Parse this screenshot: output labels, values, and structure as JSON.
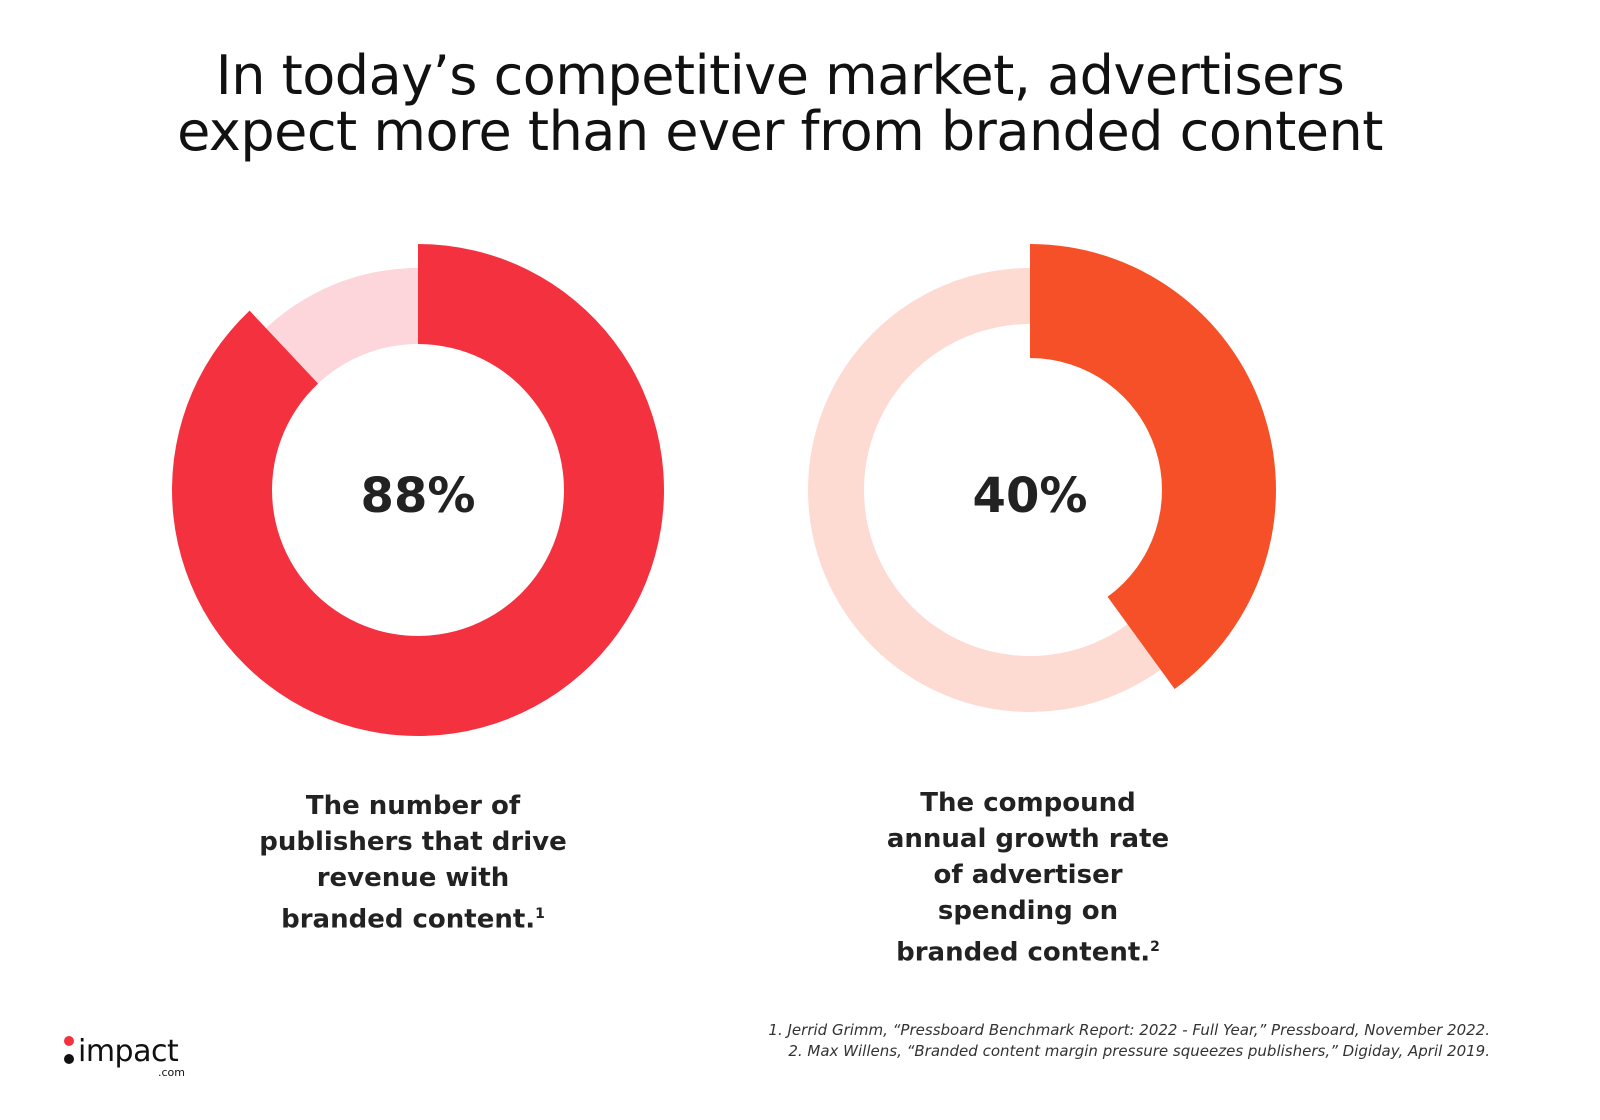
{
  "chart_data": [
    {
      "type": "pie",
      "variant": "donut",
      "value": 88,
      "label": "88%",
      "caption": "The number of publishers that drive revenue with branded content.",
      "footnote_ref": "1",
      "color": "#f4313f",
      "track_color": "#fcd6da"
    },
    {
      "type": "pie",
      "variant": "donut",
      "value": 40,
      "label": "40%",
      "caption": "The compound annual growth rate of advertiser spending on branded content.",
      "footnote_ref": "2",
      "color": "#f55027",
      "track_color": "#fddbd3"
    }
  ],
  "title": {
    "line1": "In today’s competitive market, advertisers",
    "line2": "expect more than ever from branded content"
  },
  "captions": {
    "left": [
      "The number of",
      "publishers that drive",
      "revenue with",
      "branded content."
    ],
    "right": [
      "The compound",
      "annual growth rate",
      "of advertiser",
      "spending on",
      "branded content."
    ]
  },
  "footnotes": [
    "1. Jerrid Grimm, “Pressboard Benchmark Report: 2022 - Full Year,” Pressboard, November 2022.",
    "2. Max Willens, “Branded content margin pressure squeezes publishers,” Digiday, April 2019."
  ],
  "logo": {
    "word": "impact",
    "suffix": ".com"
  }
}
